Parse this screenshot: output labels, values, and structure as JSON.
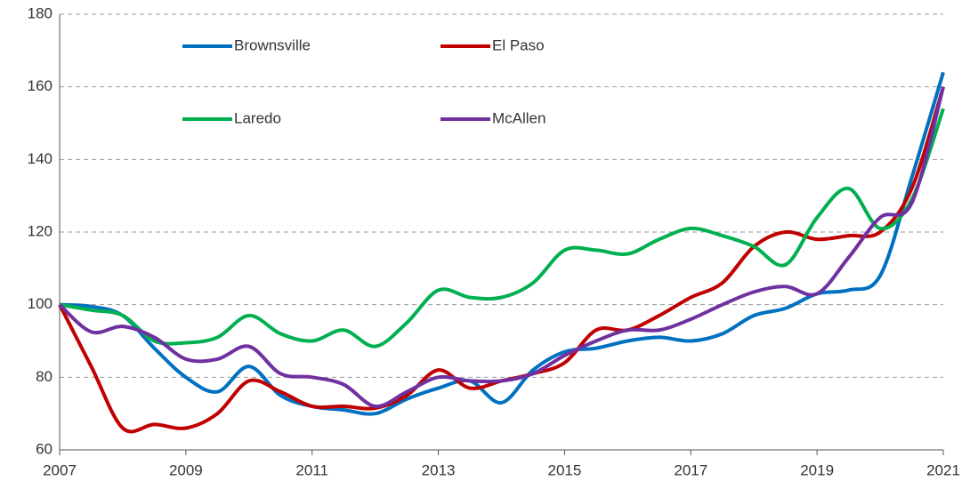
{
  "chart_data": {
    "type": "line",
    "x": [
      2007,
      2007.5,
      2008,
      2008.5,
      2009,
      2009.5,
      2010,
      2010.5,
      2011,
      2011.5,
      2012,
      2012.5,
      2013,
      2013.5,
      2014,
      2014.5,
      2015,
      2015.5,
      2016,
      2016.5,
      2017,
      2017.5,
      2018,
      2018.5,
      2019,
      2019.5,
      2020,
      2020.5,
      2021
    ],
    "series": [
      {
        "name": "Brownsville",
        "color": "#0070c0",
        "values": [
          100,
          99.5,
          97,
          88,
          80,
          76,
          83,
          75,
          72,
          71,
          70,
          74,
          77,
          79,
          73,
          82,
          87,
          88,
          90,
          91,
          90,
          92,
          97,
          99,
          103,
          104,
          108,
          135,
          164
        ]
      },
      {
        "name": "El Paso",
        "color": "#c00000",
        "values": [
          100,
          83,
          66,
          67,
          66,
          70,
          79,
          76,
          72,
          72,
          71.5,
          75,
          82,
          77,
          79,
          81,
          84,
          93,
          93,
          97,
          102,
          106,
          116,
          120,
          118,
          119,
          120,
          132,
          160
        ]
      },
      {
        "name": "Laredo",
        "color": "#00b050",
        "values": [
          100,
          98.5,
          97,
          90,
          89.5,
          91,
          97,
          92,
          90,
          93,
          88.5,
          95,
          104,
          102,
          102,
          106,
          115,
          115,
          114,
          118,
          121,
          119,
          116,
          111,
          124,
          132,
          121,
          129,
          154
        ]
      },
      {
        "name": "McAllen",
        "color": "#7030a0",
        "values": [
          100,
          92.5,
          94,
          91,
          85,
          85,
          88.5,
          81,
          80,
          78,
          72,
          76,
          80,
          79,
          79,
          81,
          86,
          90,
          93,
          93,
          96,
          100,
          103.5,
          105,
          103,
          113,
          124,
          128,
          160
        ]
      }
    ],
    "xlim": [
      2007,
      2021
    ],
    "xticks": [
      2007,
      2009,
      2011,
      2013,
      2015,
      2017,
      2019,
      2021
    ],
    "ylim": [
      60,
      180
    ],
    "yticks": [
      60,
      80,
      100,
      120,
      140,
      160,
      180
    ],
    "grid": true
  }
}
